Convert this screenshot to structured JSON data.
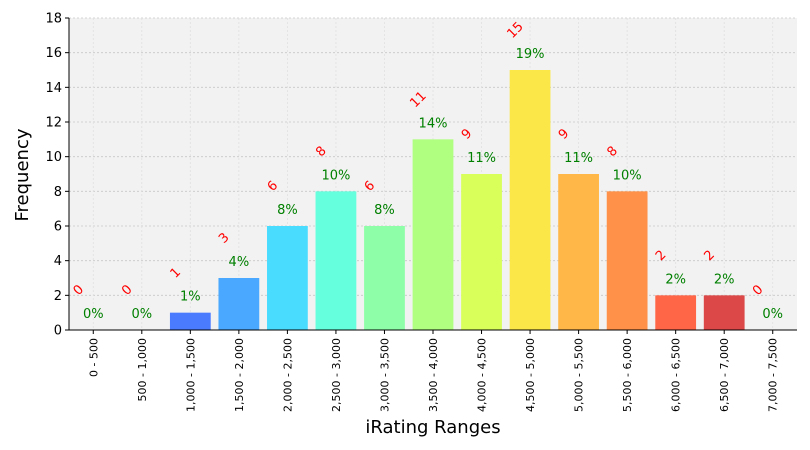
{
  "chart_data": {
    "type": "bar",
    "xlabel": "iRating Ranges",
    "ylabel": "Frequency",
    "ylim": [
      0,
      18
    ],
    "yticks": [
      0,
      2,
      4,
      6,
      8,
      10,
      12,
      14,
      16,
      18
    ],
    "grid": true,
    "categories": [
      "0 - 500",
      "500 - 1,000",
      "1,000 - 1,500",
      "1,500 - 2,000",
      "2,000 - 2,500",
      "2,500 - 3,000",
      "3,000 - 3,500",
      "3,500 - 4,000",
      "4,000 - 4,500",
      "4,500 - 5,000",
      "5,000 - 5,500",
      "5,500 - 6,000",
      "6,000 - 6,500",
      "6,500 - 7,000",
      "7,000 - 7,500"
    ],
    "values": [
      0,
      0,
      1,
      3,
      6,
      8,
      6,
      11,
      9,
      15,
      9,
      8,
      2,
      2,
      0
    ],
    "value_labels": [
      "0",
      "0",
      "1",
      "3",
      "6",
      "8",
      "6",
      "11",
      "9",
      "15",
      "9",
      "8",
      "2",
      "2",
      "0"
    ],
    "percent_labels": [
      "0%",
      "0%",
      "1%",
      "4%",
      "8%",
      "10%",
      "8%",
      "14%",
      "11%",
      "19%",
      "11%",
      "10%",
      "2%",
      "2%",
      "0%"
    ],
    "colors": [
      "#3a30ff",
      "#3a4aff",
      "#4a7bff",
      "#4aa8ff",
      "#4adcff",
      "#66ffde",
      "#8effa8",
      "#b0ff80",
      "#d8ff5a",
      "#fbe848",
      "#ffb848",
      "#ff9248",
      "#ff6648",
      "#dc4848",
      "#b83030"
    ],
    "percent_color": "#008000",
    "count_color": "#ff0000",
    "plot_background": "#f2f2f2"
  }
}
